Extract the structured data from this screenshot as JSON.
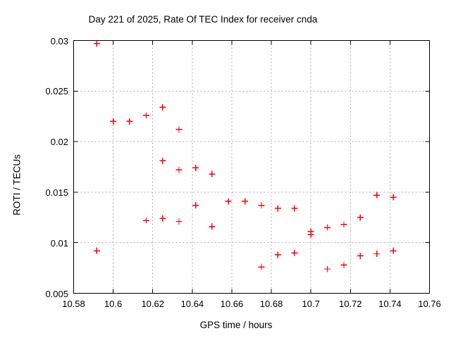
{
  "window": {
    "title": "Day 221 of 2025, Rate Of TEC Index for receiver cnda"
  },
  "colors": {
    "background": "#ffffff",
    "border": "#000000",
    "grid": "#b0b0b0",
    "text": "#000000",
    "marker": "#ff0000"
  },
  "chart_data": {
    "type": "scatter",
    "title": "Day 221 of 2025, Rate Of TEC Index for receiver cnda",
    "xlabel": "GPS time / hours",
    "ylabel": "ROTI / TECUs",
    "xlim": [
      10.58,
      10.76
    ],
    "ylim": [
      0.005,
      0.03
    ],
    "x_ticks": [
      10.58,
      10.6,
      10.62,
      10.64,
      10.66,
      10.68,
      10.7,
      10.72,
      10.74,
      10.76
    ],
    "x_tick_labels": [
      "10.58",
      "10.6",
      "10.62",
      "10.64",
      "10.66",
      "10.68",
      "10.7",
      "10.72",
      "10.74",
      "10.76"
    ],
    "y_ticks": [
      0.005,
      0.01,
      0.015,
      0.02,
      0.025,
      0.03
    ],
    "y_tick_labels": [
      "0.005",
      "0.01",
      "0.015",
      "0.02",
      "0.025",
      "0.03"
    ],
    "grid": true,
    "legend_position": "none",
    "marker": {
      "shape": "plus",
      "color": "#ff0000",
      "size": 9
    },
    "series": [
      {
        "name": "ROTI",
        "points": [
          [
            10.5917,
            0.0297
          ],
          [
            10.5917,
            0.0092
          ],
          [
            10.6,
            0.022
          ],
          [
            10.6083,
            0.022
          ],
          [
            10.6167,
            0.0226
          ],
          [
            10.6167,
            0.0122
          ],
          [
            10.625,
            0.0234
          ],
          [
            10.625,
            0.0181
          ],
          [
            10.625,
            0.0124
          ],
          [
            10.6333,
            0.0212
          ],
          [
            10.6333,
            0.0172
          ],
          [
            10.6333,
            0.0121
          ],
          [
            10.6417,
            0.0174
          ],
          [
            10.6417,
            0.0137
          ],
          [
            10.65,
            0.0168
          ],
          [
            10.65,
            0.0116
          ],
          [
            10.6583,
            0.0141
          ],
          [
            10.6667,
            0.0141
          ],
          [
            10.675,
            0.0137
          ],
          [
            10.675,
            0.0076
          ],
          [
            10.6833,
            0.0134
          ],
          [
            10.6833,
            0.0088
          ],
          [
            10.6917,
            0.0134
          ],
          [
            10.6917,
            0.009
          ],
          [
            10.7,
            0.0111
          ],
          [
            10.7,
            0.0108
          ],
          [
            10.7083,
            0.0115
          ],
          [
            10.7083,
            0.0074
          ],
          [
            10.7167,
            0.0118
          ],
          [
            10.7167,
            0.0078
          ],
          [
            10.725,
            0.0125
          ],
          [
            10.725,
            0.0087
          ],
          [
            10.7333,
            0.0147
          ],
          [
            10.7333,
            0.0089
          ],
          [
            10.7417,
            0.0145
          ],
          [
            10.7417,
            0.0092
          ]
        ]
      }
    ]
  }
}
